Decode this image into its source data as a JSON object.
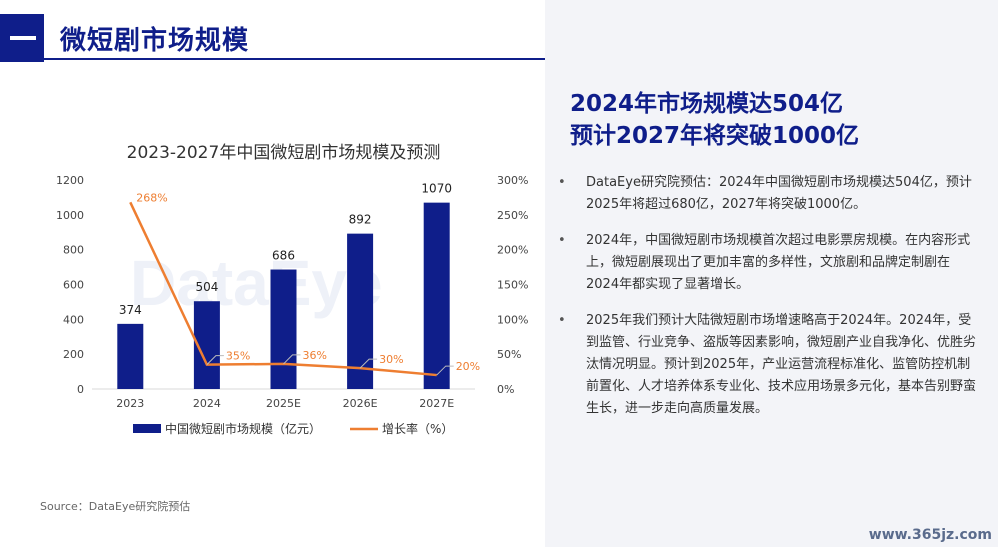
{
  "header": {
    "title": "微短剧市场规模"
  },
  "chart_data": {
    "type": "bar",
    "title": "2023-2027年中国微短剧市场规模及预测",
    "categories": [
      "2023",
      "2024",
      "2025E",
      "2026E",
      "2027E"
    ],
    "series": [
      {
        "name": "中国微短剧市场规模（亿元）",
        "type": "bar",
        "axis": "left",
        "values": [
          374,
          504,
          686,
          892,
          1070
        ],
        "color": "#0f1e8a"
      },
      {
        "name": "增长率（%）",
        "type": "line",
        "axis": "right",
        "values": [
          268,
          35,
          36,
          30,
          20
        ],
        "labels": [
          "268%",
          "35%",
          "36%",
          "30%",
          "20%"
        ],
        "color": "#ee7e31"
      }
    ],
    "y_left": {
      "ylim": [
        0,
        1200
      ],
      "ticks": [
        "0",
        "200",
        "400",
        "600",
        "800",
        "1000",
        "1200"
      ]
    },
    "y_right": {
      "ylim": [
        0,
        300
      ],
      "ticks": [
        "0%",
        "50%",
        "100%",
        "150%",
        "200%",
        "250%",
        "300%"
      ]
    },
    "grid": false,
    "legend_position": "bottom",
    "watermark": "DataEye"
  },
  "source": "Source：DataEye研究院预估",
  "headline": {
    "line1": "2024年市场规模达504亿",
    "line2": "预计2027年将突破1000亿"
  },
  "bullets": [
    {
      "text": "DataEye研究院预估：2024年中国微短剧市场规模达504亿，预计2025年将超过680亿，2027年将突破1000亿。"
    },
    {
      "text": "2024年，中国微短剧市场规模首次超过电影票房规模。在内容形式上，微短剧展现出了更加丰富的多样性，文旅剧和品牌定制剧在2024年都实现了显著增长。"
    },
    {
      "text": "2025年我们预计大陆微短剧市场增速略高于2024年。2024年，受到监管、行业竞争、盗版等因素影响，微短剧产业自我净化、优胜劣汰情况明显。预计到2025年，产业运营流程标准化、监管防控机制前置化、人才培养体系专业化、技术应用场景多元化，基本告别野蛮生长，进一步走向高质量发展。"
    }
  ],
  "bullet_symbol": "•",
  "site_watermark": "www.365jz.com"
}
